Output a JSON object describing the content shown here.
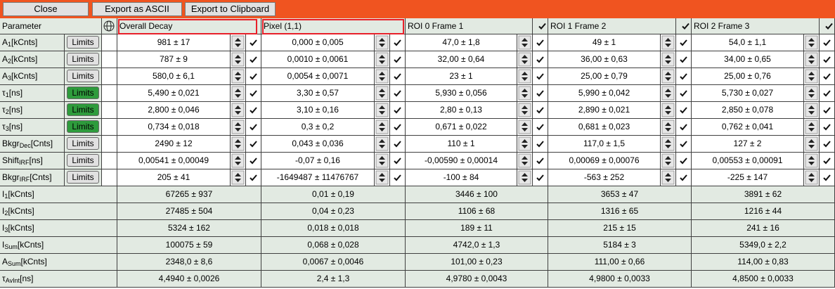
{
  "toolbar": {
    "buttons": [
      "Close",
      "Export as ASCII",
      "Export to Clipboard"
    ]
  },
  "table": {
    "parameter_header": "Parameter",
    "columns": [
      {
        "name": "Overall Decay",
        "highlighted": true,
        "checkbox": false
      },
      {
        "name": "Pixel (1,1)",
        "highlighted": true,
        "checkbox": false
      },
      {
        "name": "ROI 0 Frame 1",
        "highlighted": false,
        "checkbox": true
      },
      {
        "name": "ROI 1 Frame 2",
        "highlighted": false,
        "checkbox": true
      },
      {
        "name": "ROI 2 Frame 3",
        "highlighted": false,
        "checkbox": true
      }
    ],
    "fit_rows": [
      {
        "base": "A",
        "sub": "1",
        "unit": "[kCnts]",
        "limits": "Limits",
        "limits_active": false,
        "values": [
          "981 ± 17",
          "0,000 ± 0,005",
          "47,0 ± 1,8",
          "49 ± 1",
          "54,0 ± 1,1"
        ]
      },
      {
        "base": "A",
        "sub": "2",
        "unit": "[kCnts]",
        "limits": "Limits",
        "limits_active": false,
        "values": [
          "787 ± 9",
          "0,0010 ± 0,0061",
          "32,00 ± 0,64",
          "36,00 ± 0,63",
          "34,00 ± 0,65"
        ]
      },
      {
        "base": "A",
        "sub": "3",
        "unit": "[kCnts]",
        "limits": "Limits",
        "limits_active": false,
        "values": [
          "580,0 ± 6,1",
          "0,0054 ± 0,0071",
          "23 ± 1",
          "25,00 ± 0,79",
          "25,00 ± 0,76"
        ]
      },
      {
        "base": "τ",
        "sub": "1",
        "unit": "[ns]",
        "limits": "Limits",
        "limits_active": true,
        "values": [
          "5,490 ± 0,021",
          "3,30 ± 0,57",
          "5,930 ± 0,056",
          "5,990 ± 0,042",
          "5,730 ± 0,027"
        ]
      },
      {
        "base": "τ",
        "sub": "2",
        "unit": "[ns]",
        "limits": "Limits",
        "limits_active": true,
        "values": [
          "2,800 ± 0,046",
          "3,10 ± 0,16",
          "2,80 ± 0,13",
          "2,890 ± 0,021",
          "2,850 ± 0,078"
        ]
      },
      {
        "base": "τ",
        "sub": "3",
        "unit": "[ns]",
        "limits": "Limits",
        "limits_active": true,
        "values": [
          "0,734 ± 0,018",
          "0,3 ± 0,2",
          "0,671 ± 0,022",
          "0,681 ± 0,023",
          "0,762 ± 0,041"
        ]
      },
      {
        "base": "Bkgr",
        "sub": "Dec",
        "unit": "[Cnts]",
        "limits": "Limits",
        "limits_active": false,
        "values": [
          "2490 ± 12",
          "0,043 ± 0,036",
          "110 ± 1",
          "117,0 ± 1,5",
          "127 ± 2"
        ]
      },
      {
        "base": "Shift",
        "sub": "IRF",
        "unit": "[ns]",
        "limits": "Limits",
        "limits_active": false,
        "values": [
          "0,00541 ± 0,00049",
          "-0,07 ± 0,16",
          "-0,00590 ± 0,00014",
          "0,00069 ± 0,00076",
          "0,00553 ± 0,00091"
        ]
      },
      {
        "base": "Bkgr",
        "sub": "IRF",
        "unit": "[Cnts]",
        "limits": "Limits",
        "limits_active": false,
        "values": [
          "205 ± 41",
          "-1649487 ± 11476767",
          "-100 ± 84",
          "-563 ± 252",
          "-225 ± 147"
        ]
      }
    ],
    "summary_rows": [
      {
        "base": "I",
        "sub": "1",
        "unit": "[kCnts]",
        "values": [
          "67265 ± 937",
          "0,01 ± 0,19",
          "3446 ± 100",
          "3653 ± 47",
          "3891 ± 62"
        ]
      },
      {
        "base": "I",
        "sub": "2",
        "unit": "[kCnts]",
        "values": [
          "27485 ± 504",
          "0,04 ± 0,23",
          "1106 ± 68",
          "1316 ± 65",
          "1216 ± 44"
        ]
      },
      {
        "base": "I",
        "sub": "3",
        "unit": "[kCnts]",
        "values": [
          "5324 ± 162",
          "0,018 ± 0,018",
          "189 ± 11",
          "215 ± 15",
          "241 ± 16"
        ]
      },
      {
        "base": "I",
        "sub": "Sum",
        "unit": "[kCnts]",
        "values": [
          "100075 ± 59",
          "0,068 ± 0,028",
          "4742,0 ± 1,3",
          "5184 ± 3",
          "5349,0 ± 2,2"
        ]
      },
      {
        "base": "A",
        "sub": "Sum",
        "unit": "[kCnts]",
        "values": [
          "2348,0 ± 8,6",
          "0,0067 ± 0,0046",
          "101,00 ± 0,23",
          "111,00 ± 0,66",
          "114,00 ± 0,83"
        ]
      },
      {
        "base": "τ",
        "sub": "AvInt",
        "unit": "[ns]",
        "values": [
          "4,4940 ± 0,0026",
          "2,4 ± 1,3",
          "4,9780 ± 0,0043",
          "4,9800 ± 0,0033",
          "4,8500 ± 0,0033"
        ]
      }
    ]
  }
}
